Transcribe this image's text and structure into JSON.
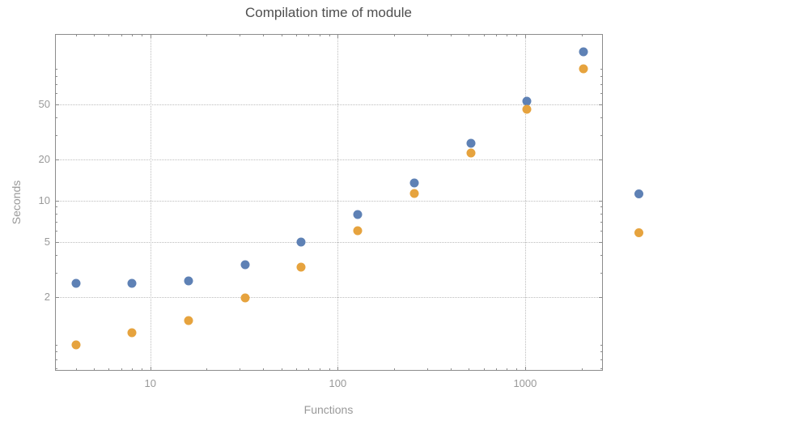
{
  "chart_data": {
    "type": "scatter",
    "title": "Compilation time of module",
    "xlabel": "Functions",
    "ylabel": "Seconds",
    "x_scale": "log",
    "y_scale": "log",
    "xlim": [
      3.1,
      2600
    ],
    "ylim": [
      0.58,
      162
    ],
    "x_ticks": [
      10,
      100,
      1000
    ],
    "y_ticks": [
      2,
      5,
      10,
      20,
      50
    ],
    "grid": true,
    "x": [
      4,
      8,
      16,
      32,
      64,
      128,
      256,
      512,
      1024,
      2048
    ],
    "series": [
      {
        "name": "series-blue",
        "color": "#5e81b5",
        "values": [
          2.5,
          2.5,
          2.6,
          3.4,
          5.0,
          7.9,
          13.5,
          26,
          53,
          120
        ]
      },
      {
        "name": "series-orange",
        "color": "#e6a33e",
        "values": [
          0.9,
          1.1,
          1.35,
          1.95,
          3.3,
          6.0,
          11.3,
          22,
          46,
          90
        ]
      }
    ],
    "legend": {
      "position": "outside-right",
      "entries": [
        {
          "swatch_color": "#5e81b5",
          "label": ""
        },
        {
          "swatch_color": "#e6a33e",
          "label": ""
        }
      ]
    }
  }
}
